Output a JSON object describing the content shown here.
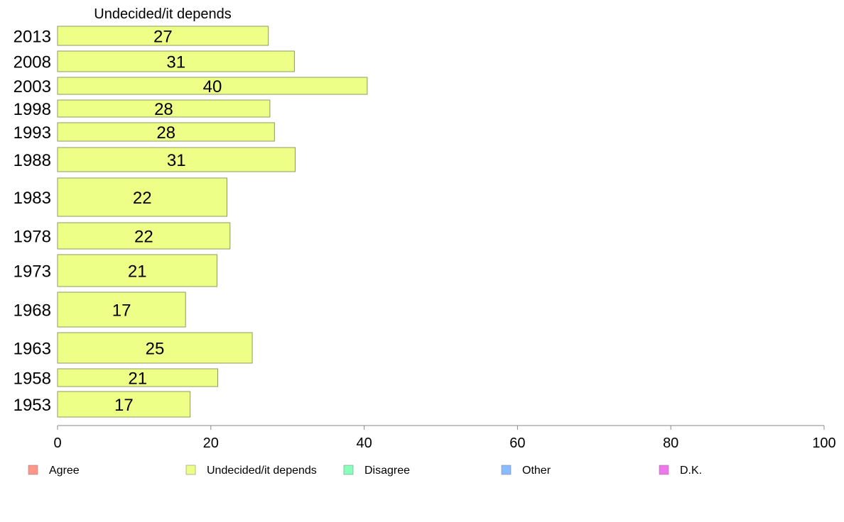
{
  "chart_data": {
    "type": "bar",
    "orientation": "horizontal",
    "series_title": "Undecided/it depends",
    "categories": [
      "2013",
      "2008",
      "2003",
      "1998",
      "1993",
      "1988",
      "1983",
      "1978",
      "1973",
      "1968",
      "1963",
      "1958",
      "1953"
    ],
    "series": [
      {
        "name": "Undecided/it depends",
        "values": [
          27.5,
          30.9,
          40.4,
          27.7,
          28.3,
          31.0,
          22.1,
          22.5,
          20.8,
          16.7,
          25.4,
          20.9,
          17.3
        ],
        "labels": [
          "27",
          "31",
          "40",
          "28",
          "28",
          "31",
          "22",
          "22",
          "21",
          "17",
          "25",
          "21",
          "17"
        ],
        "color": "#eeff88"
      }
    ],
    "xlim": [
      0,
      100
    ],
    "xticks": [
      "0",
      "20",
      "40",
      "60",
      "80",
      "100"
    ],
    "grid": false,
    "legend": {
      "placement": "bottom",
      "entries": [
        {
          "label": "Agree",
          "color": "#ff9688"
        },
        {
          "label": "Undecided/it depends",
          "color": "#eeff88"
        },
        {
          "label": "Disagree",
          "color": "#88ffbb"
        },
        {
          "label": "Other",
          "color": "#88bbff"
        },
        {
          "label": "D.K.",
          "color": "#ee77ee"
        }
      ]
    }
  }
}
